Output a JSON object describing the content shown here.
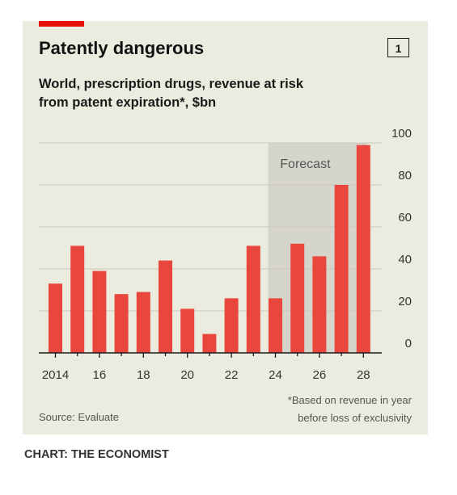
{
  "header": {
    "title": "Patently dangerous",
    "subtitle": "World, prescription drugs, revenue at risk from patent expiration*, $bn",
    "chart_number": "1"
  },
  "footer": {
    "source": "Source: Evaluate",
    "note_line1": "*Based on revenue in year",
    "note_line2": "before loss of exclusivity",
    "credit": "CHART: THE ECONOMIST"
  },
  "colors": {
    "bar": "#e9473d",
    "forecast_shade": "#d6d5cb",
    "panel": "#ecebdf",
    "brand_red": "#e3120b"
  },
  "chart_data": {
    "type": "bar",
    "title": "Patently dangerous",
    "subtitle": "World, prescription drugs, revenue at risk from patent expiration*, $bn",
    "x": [
      2014,
      2015,
      2016,
      2017,
      2018,
      2019,
      2020,
      2021,
      2022,
      2023,
      2024,
      2025,
      2026,
      2027,
      2028
    ],
    "values": [
      33,
      51,
      39,
      28,
      29,
      44,
      21,
      9,
      26,
      51,
      26,
      52,
      46,
      80,
      99
    ],
    "x_tick_labels": [
      {
        "year": 2014,
        "label": "2014"
      },
      {
        "year": 2016,
        "label": "16"
      },
      {
        "year": 2018,
        "label": "18"
      },
      {
        "year": 2020,
        "label": "20"
      },
      {
        "year": 2022,
        "label": "22"
      },
      {
        "year": 2024,
        "label": "24"
      },
      {
        "year": 2026,
        "label": "26"
      },
      {
        "year": 2028,
        "label": "28"
      }
    ],
    "y_ticks": [
      0,
      20,
      40,
      60,
      80,
      100
    ],
    "ylim": [
      0,
      100
    ],
    "y_axis_side": "right",
    "grid": true,
    "forecast": {
      "label": "Forecast",
      "from_year": 2024,
      "to_year": 2028
    }
  }
}
